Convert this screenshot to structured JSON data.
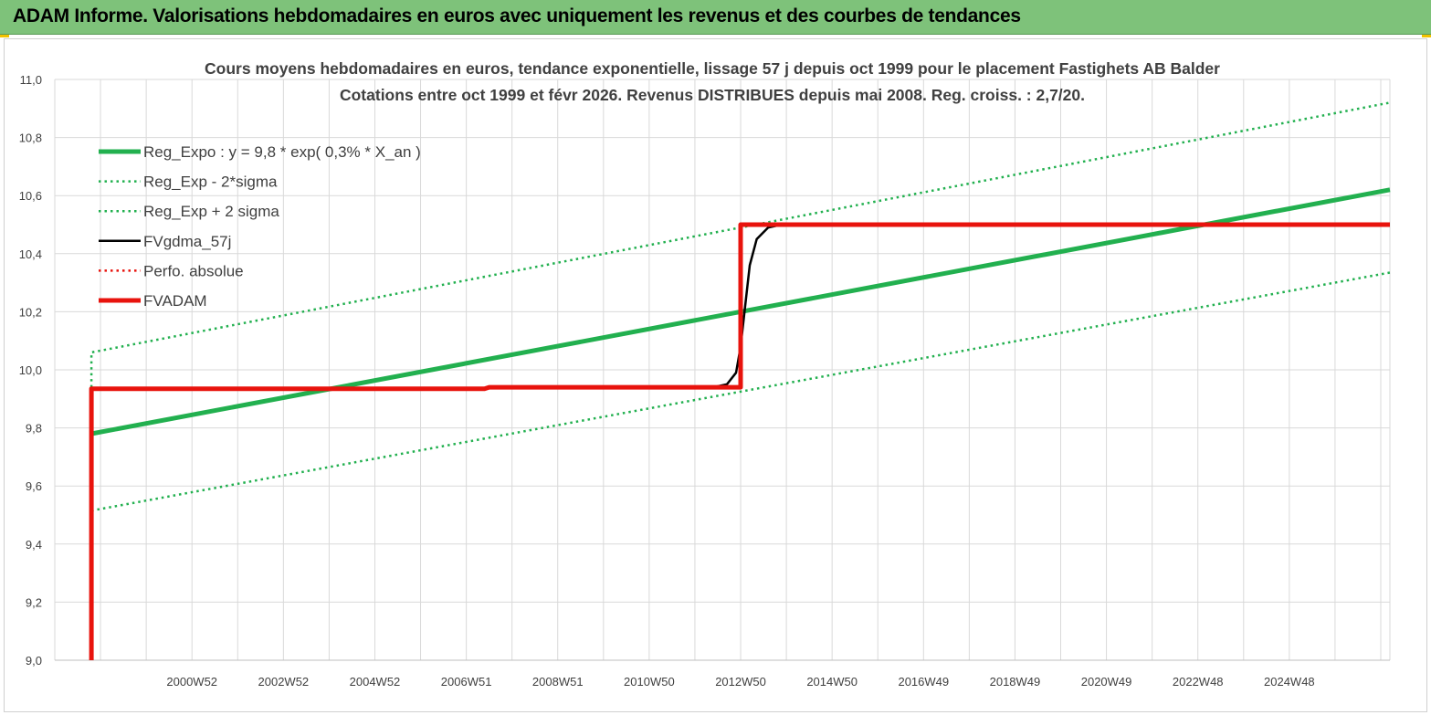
{
  "header": {
    "title": "ADAM Informe. Valorisations hebdomadaires en euros avec uniquement les revenus et des courbes de tendances"
  },
  "colors": {
    "banner": "#7ec27a",
    "trend": "#22b04f",
    "smooth": "#000000",
    "adam": "#e8130d",
    "perfo": "#e8130d",
    "grid": "#d9d9d9"
  },
  "chart_data": {
    "type": "line",
    "title_line1": "Cours moyens hebdomadaires en euros, tendance exponentielle, lissage 57 j depuis oct 1999 pour le placement Fastighets AB Balder",
    "title_line2": "Cotations entre oct 1999 et févr 2026. Revenus DISTRIBUES depuis mai 2008. Reg. croiss. : 2,7/20.",
    "x_tick_labels": [
      "2000W52",
      "2002W52",
      "2004W52",
      "2006W51",
      "2008W51",
      "2010W50",
      "2012W50",
      "2014W50",
      "2016W49",
      "2018W49",
      "2020W49",
      "2022W48",
      "2024W48"
    ],
    "x_tick_years": [
      2001,
      2003,
      2005,
      2007,
      2009,
      2011,
      2013,
      2015,
      2017,
      2019,
      2021,
      2023,
      2025
    ],
    "x_range": [
      1998.0,
      2027.2
    ],
    "ylim": [
      9.0,
      11.0
    ],
    "y_tick_labels": [
      "9,0",
      "9,2",
      "9,4",
      "9,6",
      "9,8",
      "10,0",
      "10,2",
      "10,4",
      "10,6",
      "10,8",
      "11,0"
    ],
    "y_ticks": [
      9.0,
      9.2,
      9.4,
      9.6,
      9.8,
      10.0,
      10.2,
      10.4,
      10.6,
      10.8,
      11.0
    ],
    "legend": [
      {
        "label": "Reg_Expo : y = 9,8 * exp( 0,3% *  X_an )",
        "style": "thick-solid",
        "color": "#22b04f"
      },
      {
        "label": "Reg_Exp - 2*sigma",
        "style": "dotted",
        "color": "#22b04f"
      },
      {
        "label": "Reg_Exp + 2 sigma",
        "style": "dotted",
        "color": "#22b04f"
      },
      {
        "label": "FVgdma_57j",
        "style": "solid",
        "color": "#000000"
      },
      {
        "label": "Perfo. absolue",
        "style": "dotted",
        "color": "#e8130d"
      },
      {
        "label": "FVADAM",
        "style": "thick-solid",
        "color": "#e8130d"
      }
    ],
    "series": [
      {
        "name": "Reg_Expo : y = 9,8 * exp( 0,3% *  X_an )",
        "x": [
          1998.8,
          2027.2
        ],
        "y": [
          9.78,
          10.62
        ]
      },
      {
        "name": "Reg_Exp - 2*sigma",
        "x": [
          1998.8,
          2027.2
        ],
        "y": [
          9.515,
          10.335
        ]
      },
      {
        "name": "Reg_Exp + 2 sigma",
        "x": [
          1998.8,
          1998.8,
          2027.2
        ],
        "y": [
          9.94,
          10.06,
          10.92
        ]
      },
      {
        "name": "FVgdma_57j",
        "x": [
          2012.4,
          2012.7,
          2012.9,
          2013.0,
          2013.1,
          2013.2,
          2013.35,
          2013.6,
          2013.9
        ],
        "y": [
          9.94,
          9.95,
          9.99,
          10.08,
          10.22,
          10.36,
          10.45,
          10.49,
          10.5
        ]
      },
      {
        "name": "FVADAM",
        "x": [
          1998.8,
          1998.8,
          2007.4,
          2007.5,
          2013.0,
          2013.0,
          2027.2
        ],
        "y": [
          9.0,
          9.935,
          9.935,
          9.94,
          9.94,
          10.5,
          10.5
        ]
      }
    ]
  }
}
